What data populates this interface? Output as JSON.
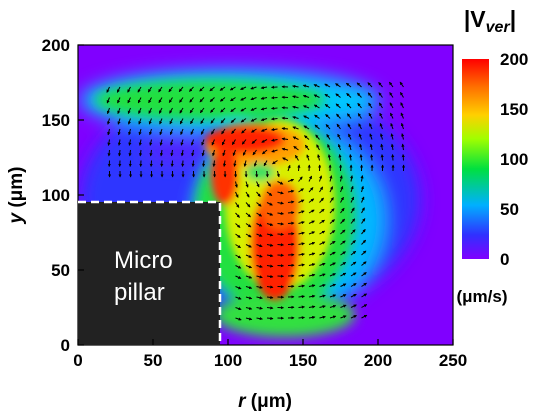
{
  "chart_data": {
    "type": "heatmap",
    "subtype": "velocity magnitude contour with vector field",
    "title_main": "|V",
    "title_sub": "ver",
    "title_end": "|",
    "xlabel_var": "r",
    "xlabel_unit": " (μm)",
    "ylabel_var": "y",
    "ylabel_unit": " (μm)",
    "xlim": [
      0,
      250
    ],
    "ylim": [
      0,
      200
    ],
    "xticks": [
      "0",
      "50",
      "100",
      "150",
      "200",
      "250"
    ],
    "yticks": [
      "0",
      "50",
      "100",
      "150",
      "200"
    ],
    "colorbar": {
      "min": 0,
      "max": 200,
      "ticks": [
        "0",
        "50",
        "100",
        "150",
        "200"
      ],
      "unit": "(μm/s)",
      "colormap": [
        "#8000ff",
        "#0020ff",
        "#00c0ff",
        "#00e040",
        "#c0ff00",
        "#ffd000",
        "#ff6000",
        "#ff0000"
      ]
    },
    "pillar": {
      "label_line1": "Micro",
      "label_line2": "pillar",
      "r_max": 95,
      "y_max": 97,
      "fill": "#222222"
    },
    "background_color": "#8000ff",
    "vortex_center": [
      137,
      117
    ],
    "peak_velocity": 200
  }
}
